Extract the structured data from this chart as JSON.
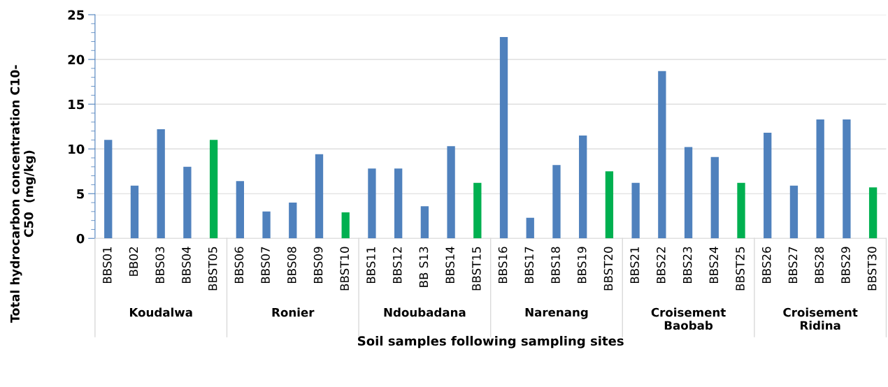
{
  "chart_data": {
    "type": "bar",
    "xlabel": "Soil samples following sampling sites",
    "ylabel": "Total hydrocarbon concentration C10-\nC50  (mg/kg)",
    "categories": [
      "BBS01",
      "BB02",
      "BBS03",
      "BBS04",
      "BBST05",
      "BBS06",
      "BBS07",
      "BBS08",
      "BBS09",
      "BBST10",
      "BBS11",
      "BBS12",
      "BB S13",
      "BBS14",
      "BBST15",
      "BBS16",
      "BBS17",
      "BBS18",
      "BBS19",
      "BBST20",
      "BBS21",
      "BBS22",
      "BBS23",
      "BBS24",
      "BBST25",
      "BBS26",
      "BBS27",
      "BBS28",
      "BBS29",
      "BBST30"
    ],
    "values": [
      11.0,
      5.9,
      12.2,
      8.0,
      11.0,
      6.4,
      3.0,
      4.0,
      9.4,
      2.9,
      7.8,
      7.8,
      3.6,
      10.3,
      6.2,
      22.5,
      2.3,
      8.2,
      11.5,
      7.5,
      6.2,
      18.7,
      10.2,
      9.1,
      6.2,
      11.8,
      5.9,
      13.3,
      13.3,
      5.7
    ],
    "colors": [
      "#4f81bd",
      "#4f81bd",
      "#4f81bd",
      "#4f81bd",
      "#00b050",
      "#4f81bd",
      "#4f81bd",
      "#4f81bd",
      "#4f81bd",
      "#00b050",
      "#4f81bd",
      "#4f81bd",
      "#4f81bd",
      "#4f81bd",
      "#00b050",
      "#4f81bd",
      "#4f81bd",
      "#4f81bd",
      "#4f81bd",
      "#00b050",
      "#4f81bd",
      "#4f81bd",
      "#4f81bd",
      "#4f81bd",
      "#00b050",
      "#4f81bd",
      "#4f81bd",
      "#4f81bd",
      "#4f81bd",
      "#00b050"
    ],
    "annotations": [
      "Koudalwa",
      "Ronier",
      "Ndoubadana",
      "Narenang",
      "Croisement\nBaobab",
      "Croisement\nRidina"
    ],
    "ylim": [
      0,
      25
    ],
    "yticks": [
      0,
      5,
      10,
      15,
      20,
      25
    ],
    "grid": "y"
  }
}
